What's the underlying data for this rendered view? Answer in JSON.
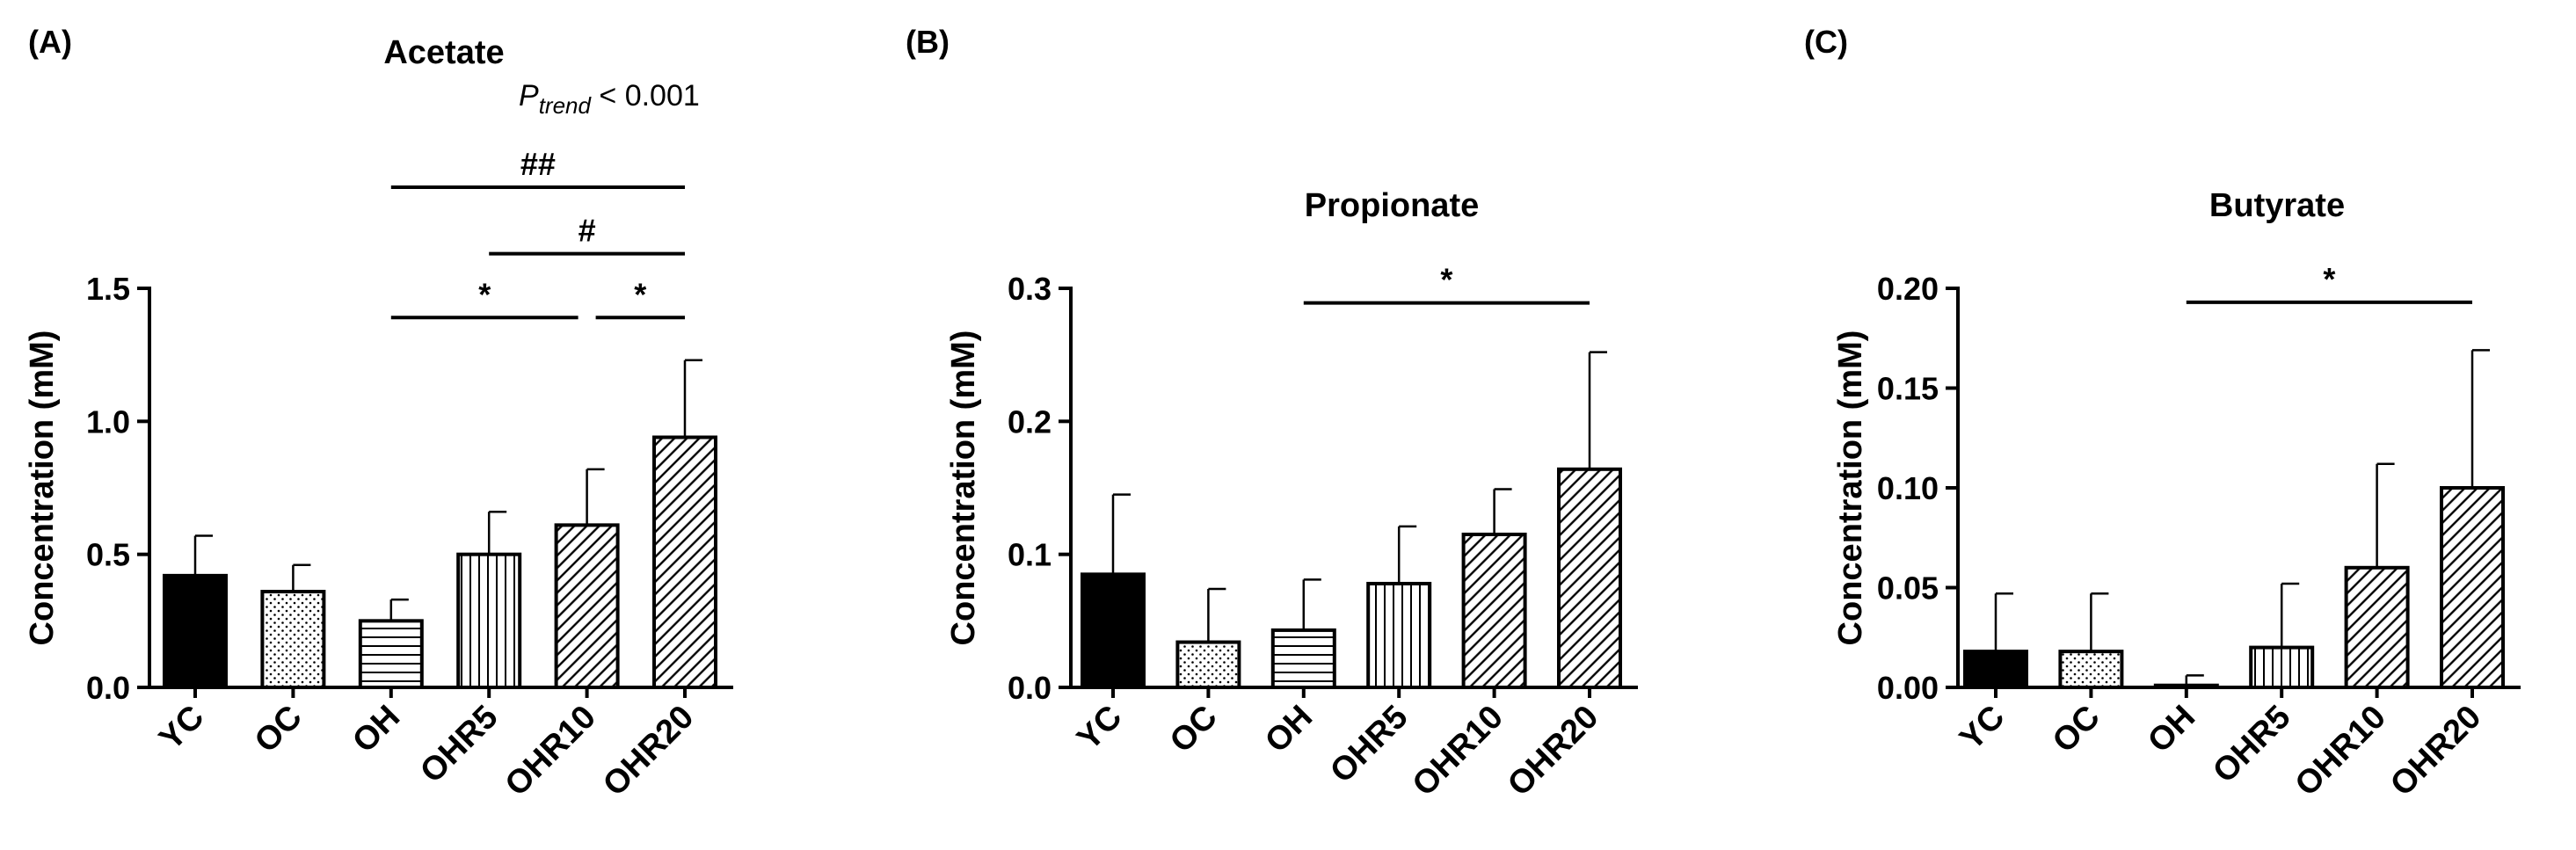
{
  "figure": {
    "panel_labels": [
      "(A)",
      "(B)",
      "(C)"
    ]
  },
  "chart_data": [
    {
      "type": "bar",
      "panel": "(A)",
      "title": "Acetate",
      "ylabel": "Concentration (mM)",
      "xlabel": "",
      "categories": [
        "YC",
        "OC",
        "OH",
        "OHR5",
        "OHR10",
        "OHR20"
      ],
      "values": [
        0.42,
        0.36,
        0.25,
        0.5,
        0.61,
        0.94
      ],
      "errors": [
        0.15,
        0.1,
        0.08,
        0.16,
        0.21,
        0.29
      ],
      "ylim": [
        0,
        1.5
      ],
      "yticks": [
        0,
        0.5,
        1.0,
        1.5
      ],
      "ytick_labels": [
        "0.0",
        "0.5",
        "1.0",
        "1.5"
      ],
      "patterns": [
        "solid",
        "dots",
        "hlines",
        "vlines",
        "diag",
        "diag"
      ],
      "trend": {
        "prefix": "P",
        "subscript": "trend",
        "text": " < 0.001"
      },
      "annotations": [
        {
          "from": "OH",
          "to": "OHR20",
          "text": "##",
          "y": 1.88
        },
        {
          "from": "OHR5",
          "to": "OHR20",
          "text": "#",
          "y": 1.63
        },
        {
          "from": "OH",
          "to": "OHR10",
          "text": "*",
          "y": 1.39
        },
        {
          "from": "OHR10",
          "to": "OHR20",
          "text": "*",
          "y": 1.39
        }
      ]
    },
    {
      "type": "bar",
      "panel": "(B)",
      "title": "Propionate",
      "ylabel": "Concentration (mM)",
      "xlabel": "",
      "categories": [
        "YC",
        "OC",
        "OH",
        "OHR5",
        "OHR10",
        "OHR20"
      ],
      "values": [
        0.085,
        0.034,
        0.043,
        0.078,
        0.115,
        0.164
      ],
      "errors": [
        0.06,
        0.04,
        0.038,
        0.043,
        0.034,
        0.088
      ],
      "ylim": [
        0,
        0.3
      ],
      "yticks": [
        0,
        0.1,
        0.2,
        0.3
      ],
      "ytick_labels": [
        "0.0",
        "0.1",
        "0.2",
        "0.3"
      ],
      "patterns": [
        "solid",
        "dots",
        "hlines",
        "vlines",
        "diag",
        "diag"
      ],
      "annotations": [
        {
          "from": "OH",
          "to": "OHR20",
          "text": "*",
          "y": 0.289
        }
      ]
    },
    {
      "type": "bar",
      "panel": "(C)",
      "title": "Butyrate",
      "ylabel": "Concentration (mM)",
      "xlabel": "",
      "categories": [
        "YC",
        "OC",
        "OH",
        "OHR5",
        "OHR10",
        "OHR20"
      ],
      "values": [
        0.018,
        0.018,
        0.001,
        0.02,
        0.06,
        0.1
      ],
      "errors": [
        0.029,
        0.029,
        0.005,
        0.032,
        0.052,
        0.069
      ],
      "ylim": [
        0,
        0.2
      ],
      "yticks": [
        0,
        0.05,
        0.1,
        0.15,
        0.2
      ],
      "ytick_labels": [
        "0.00",
        "0.05",
        "0.10",
        "0.15",
        "0.20"
      ],
      "patterns": [
        "solid",
        "dots",
        "hlines",
        "vlines",
        "diag",
        "diag"
      ],
      "annotations": [
        {
          "from": "OH",
          "to": "OHR20",
          "text": "*",
          "y": 0.193
        }
      ]
    }
  ]
}
